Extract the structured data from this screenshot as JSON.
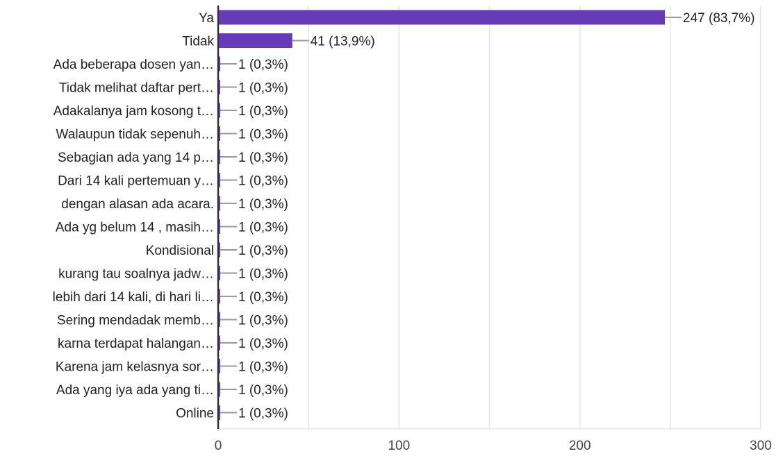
{
  "chart_data": {
    "type": "bar",
    "orientation": "horizontal",
    "xlim": [
      0,
      300
    ],
    "x_ticks": [
      "0",
      "100",
      "200",
      "300"
    ],
    "grid": true,
    "bar_color": "#673ab7",
    "categories": [
      "Ya",
      "Tidak",
      "Ada beberapa dosen yan…",
      "Tidak melihat daftar pert…",
      "Adakalanya jam kosong t…",
      "Walaupun tidak sepenuh…",
      "Sebagian ada yang 14 p…",
      "Dari 14 kali pertemuan y…",
      "dengan alasan ada acara.",
      "Ada yg belum 14 , masih…",
      "Kondisional",
      "kurang tau soalnya jadw…",
      "lebih dari 14 kali, di hari li…",
      "Sering mendadak memb…",
      "karna terdapat halangan…",
      "Karena jam kelasnya sor…",
      "Ada yang iya ada yang ti…",
      "Online"
    ],
    "values": [
      247,
      41,
      1,
      1,
      1,
      1,
      1,
      1,
      1,
      1,
      1,
      1,
      1,
      1,
      1,
      1,
      1,
      1
    ],
    "value_labels": [
      "247 (83,7%)",
      "41 (13,9%)",
      "1 (0,3%)",
      "1 (0,3%)",
      "1 (0,3%)",
      "1 (0,3%)",
      "1 (0,3%)",
      "1 (0,3%)",
      "1 (0,3%)",
      "1 (0,3%)",
      "1 (0,3%)",
      "1 (0,3%)",
      "1 (0,3%)",
      "1 (0,3%)",
      "1 (0,3%)",
      "1 (0,3%)",
      "1 (0,3%)",
      "1 (0,3%)"
    ]
  }
}
